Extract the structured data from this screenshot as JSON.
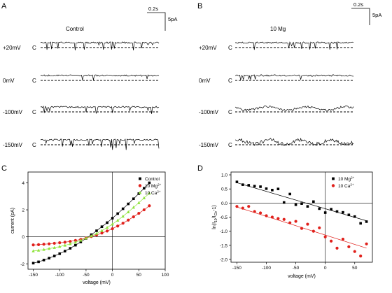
{
  "panels": {
    "A": {
      "letter": "A",
      "title": "Control",
      "scale": {
        "time_label": "0.2s",
        "current_label": "5pA"
      },
      "rows": [
        {
          "voltage": "+20mV",
          "closed": "C",
          "pattern": "down"
        },
        {
          "voltage": "0mV",
          "closed": "C",
          "pattern": "flat"
        },
        {
          "voltage": "-100mV",
          "closed": "C",
          "pattern": "down"
        },
        {
          "voltage": "-150mV",
          "closed": "C",
          "pattern": "downbig"
        }
      ]
    },
    "B": {
      "letter": "B",
      "title": "10 Mg",
      "scale": {
        "time_label": "0.2s",
        "current_label": "5pA"
      },
      "rows": [
        {
          "voltage": "+20mV",
          "closed": "C",
          "pattern": "down"
        },
        {
          "voltage": "0mV",
          "closed": "C",
          "pattern": "flat"
        },
        {
          "voltage": "-100mV",
          "closed": "C",
          "pattern": "flicker"
        },
        {
          "voltage": "-150mV",
          "closed": "C",
          "pattern": "flickerbig"
        }
      ]
    }
  },
  "colors": {
    "control": "#000000",
    "mg": "#e0201b",
    "ca": "#8ee33a"
  },
  "chart_data": [
    {
      "panel": "C",
      "type": "scatter",
      "xlabel": "voltage (mV)",
      "ylabel": "current (pA)",
      "xlim": [
        -160,
        100
      ],
      "ylim": [
        -2.4,
        4.8
      ],
      "xticks": [
        -150,
        -100,
        -50,
        0,
        50,
        100
      ],
      "yticks": [
        -2,
        0,
        2,
        4
      ],
      "x": [
        -150,
        -140,
        -130,
        -120,
        -110,
        -100,
        -90,
        -80,
        -70,
        -60,
        -50,
        -40,
        -30,
        -20,
        -10,
        0,
        10,
        20,
        30,
        40,
        50,
        60,
        70
      ],
      "series": [
        {
          "legend_main": "Control",
          "legend_sup": "",
          "marker": "square",
          "color": "#000000",
          "values": [
            -1.95,
            -1.85,
            -1.72,
            -1.58,
            -1.42,
            -1.25,
            -1.06,
            -0.85,
            -0.62,
            -0.38,
            -0.12,
            0.16,
            0.45,
            0.75,
            1.05,
            1.38,
            1.72,
            2.08,
            2.44,
            2.82,
            3.2,
            3.6,
            4.0
          ]
        },
        {
          "legend_main": "10 Mg",
          "legend_sup": "2+",
          "marker": "circle",
          "color": "#e0201b",
          "values": [
            -0.6,
            -0.58,
            -0.55,
            -0.52,
            -0.48,
            -0.44,
            -0.4,
            -0.34,
            -0.27,
            -0.19,
            -0.09,
            0.02,
            0.14,
            0.28,
            0.43,
            0.6,
            0.8,
            1.01,
            1.24,
            1.48,
            1.74,
            2.0,
            2.3
          ]
        },
        {
          "legend_main": "10 Ca",
          "legend_sup": "2+",
          "marker": "triangle",
          "color": "#8ee33a",
          "values": [
            -1.05,
            -1.0,
            -0.94,
            -0.87,
            -0.8,
            -0.72,
            -0.63,
            -0.52,
            -0.4,
            -0.26,
            -0.1,
            0.06,
            0.25,
            0.46,
            0.69,
            0.94,
            1.22,
            1.52,
            1.84,
            2.18,
            2.52,
            2.88,
            3.22
          ]
        }
      ],
      "fit_lines": true,
      "legend_position": "top-left"
    },
    {
      "panel": "D",
      "type": "scatter",
      "xlabel": "voltage (mV)",
      "ylabel_main": "ln(I",
      "ylabel_sub1": "10",
      "ylabel_mid": "/I",
      "ylabel_sub2": "Ctr",
      "ylabel_end": "-1)",
      "xlim": [
        -160,
        80
      ],
      "ylim": [
        -2.1,
        1.1
      ],
      "xticks": [
        -150,
        -100,
        -50,
        0,
        50
      ],
      "yticks": [
        -2.0,
        -1.5,
        -1.0,
        -0.5,
        0.0,
        0.5,
        1.0
      ],
      "ytick_labels": [
        "-2.0",
        "-1.5",
        "-1.0",
        "-0.5",
        "0.0",
        "0.5",
        "1.0"
      ],
      "series": [
        {
          "legend_main": "10 Mg",
          "legend_sup": "2+",
          "marker": "square",
          "color": "#000000",
          "x": [
            -150,
            -140,
            -130,
            -120,
            -110,
            -100,
            -90,
            -80,
            -70,
            -60,
            -50,
            -40,
            -30,
            -20,
            -10,
            0,
            10,
            20,
            30,
            40,
            50,
            60,
            70
          ],
          "y": [
            0.75,
            0.65,
            0.63,
            0.6,
            0.58,
            0.51,
            0.46,
            0.5,
            0.02,
            0.32,
            -0.06,
            -0.02,
            -0.12,
            0.05,
            -0.2,
            -0.34,
            -0.22,
            -0.3,
            -0.33,
            -0.42,
            -0.48,
            -0.72,
            -0.66
          ],
          "fit": [
            0.72,
            -0.63
          ]
        },
        {
          "legend_main": "10 Ca",
          "legend_sup": "2+",
          "marker": "circle",
          "color": "#e0201b",
          "x": [
            -150,
            -140,
            -130,
            -120,
            -110,
            -100,
            -90,
            -80,
            -70,
            -60,
            -50,
            -40,
            -30,
            -20,
            -10,
            0,
            10,
            20,
            30,
            40,
            50,
            60,
            70
          ],
          "y": [
            -0.12,
            -0.18,
            -0.12,
            -0.3,
            -0.35,
            -0.45,
            -0.5,
            -0.55,
            -0.58,
            -0.7,
            -0.65,
            -0.9,
            -0.75,
            -1.0,
            -0.88,
            -1.2,
            -1.35,
            -1.6,
            -1.28,
            -1.55,
            -1.72,
            -1.88,
            -1.45
          ],
          "fit": [
            -0.14,
            -1.6
          ]
        }
      ],
      "legend_position": "top-right"
    }
  ]
}
